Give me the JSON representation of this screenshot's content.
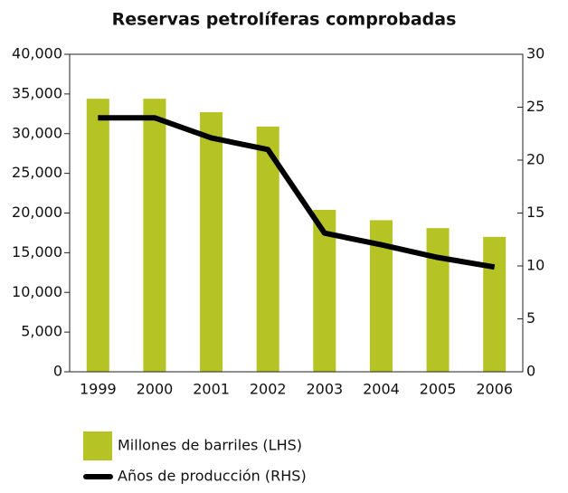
{
  "chart_data": {
    "type": "bar",
    "title": "Reservas petrolíferas comprobadas",
    "categories": [
      "1999",
      "2000",
      "2001",
      "2002",
      "2003",
      "2004",
      "2005",
      "2006"
    ],
    "series": [
      {
        "name": "Millones de barriles (LHS)",
        "type": "bar",
        "color": "#b5c424",
        "values": [
          34400,
          34400,
          32700,
          30900,
          20400,
          19100,
          18100,
          17000
        ]
      },
      {
        "name": "Años de producción (RHS)",
        "type": "line",
        "axis": "y2",
        "color": "#000000",
        "values": [
          24,
          24,
          22.1,
          21,
          13.1,
          12,
          10.8,
          9.9
        ]
      }
    ],
    "ylim": [
      0,
      40000
    ],
    "yticks": [
      0,
      {
        "value": 5000,
        "label": "5,000"
      },
      {
        "value": 10000,
        "label": "10,000"
      },
      {
        "value": 15000,
        "label": "15,000"
      },
      {
        "value": 20000,
        "label": "20,000"
      },
      {
        "value": 25000,
        "label": "25,000"
      },
      {
        "value": 30000,
        "label": "30,000"
      },
      {
        "value": 35000,
        "label": "35,000"
      },
      {
        "value": 40000,
        "label": "40,000"
      }
    ],
    "y2lim": [
      0,
      30
    ],
    "y2ticks": [
      0,
      5,
      10,
      15,
      20,
      25,
      30
    ]
  }
}
